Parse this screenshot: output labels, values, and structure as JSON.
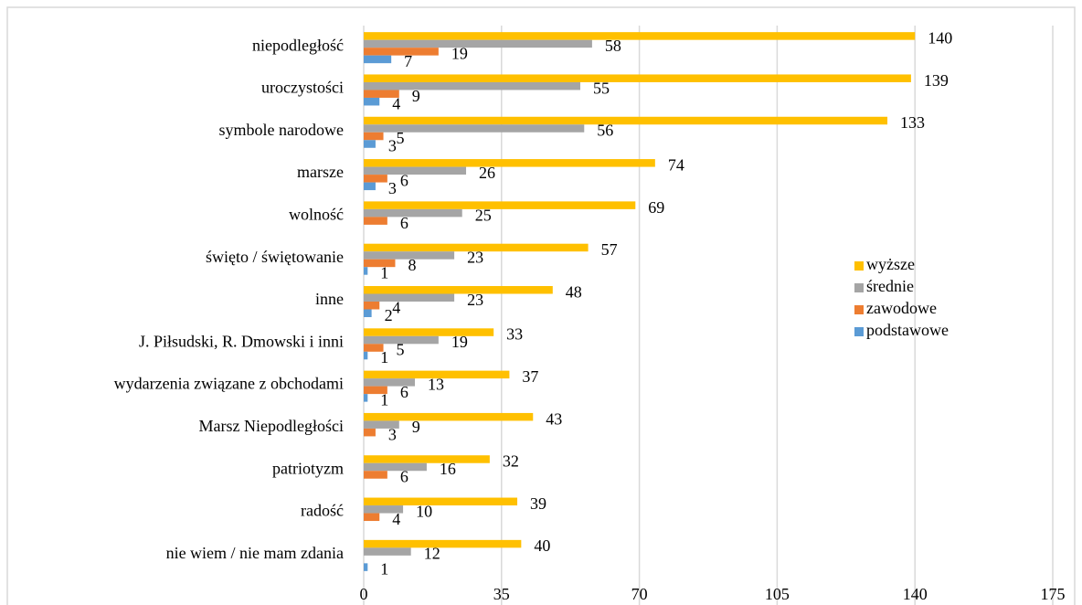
{
  "chart_data": {
    "type": "bar",
    "orientation": "horizontal",
    "categories": [
      "niepodległość",
      "uroczystości",
      "symbole narodowe",
      "marsze",
      "wolność",
      "święto / świętowanie",
      "inne",
      "J. Piłsudski, R. Dmowski i inni",
      "wydarzenia związane z obchodami",
      "Marsz Niepodległości",
      "patriotyzm",
      "radość",
      "nie wiem / nie mam zdania"
    ],
    "series": [
      {
        "name": "wyższe",
        "color": "#ffc000",
        "values": [
          140,
          139,
          133,
          74,
          69,
          57,
          48,
          33,
          37,
          43,
          32,
          39,
          40
        ]
      },
      {
        "name": "średnie",
        "color": "#a5a5a5",
        "values": [
          58,
          55,
          56,
          26,
          25,
          23,
          23,
          19,
          13,
          9,
          16,
          10,
          12
        ]
      },
      {
        "name": "zawodowe",
        "color": "#ed7d31",
        "values": [
          19,
          9,
          5,
          6,
          6,
          8,
          4,
          5,
          6,
          3,
          6,
          4,
          null
        ]
      },
      {
        "name": "podstawowe",
        "color": "#5b9bd5",
        "values": [
          7,
          4,
          3,
          3,
          null,
          1,
          2,
          1,
          1,
          null,
          null,
          null,
          1
        ]
      }
    ],
    "xlim": [
      0,
      175
    ],
    "xticks": [
      0,
      35,
      70,
      105,
      140,
      175
    ],
    "grid": true,
    "legend": "right"
  }
}
